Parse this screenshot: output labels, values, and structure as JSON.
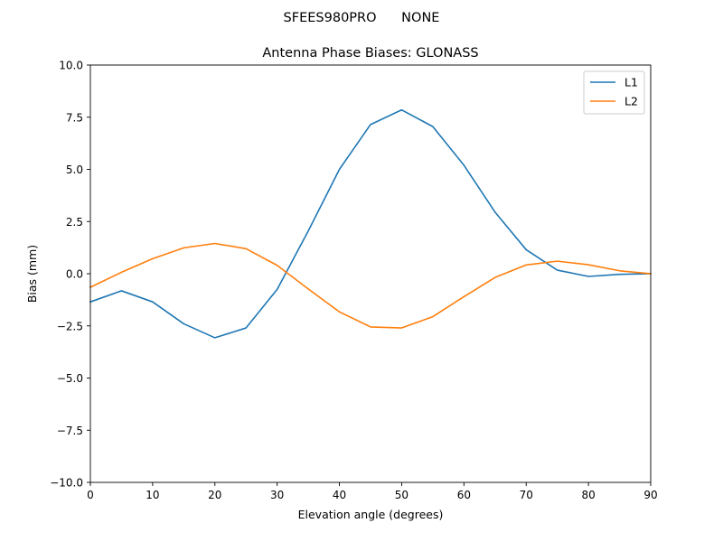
{
  "suptitle": "SFEES980PRO      NONE",
  "chart_data": {
    "type": "line",
    "title": "Antenna Phase Biases: GLONASS",
    "xlabel": "Elevation angle (degrees)",
    "ylabel": "Bias (mm)",
    "xlim": [
      0,
      90
    ],
    "ylim": [
      -10,
      10
    ],
    "xticks": [
      0,
      10,
      20,
      30,
      40,
      50,
      60,
      70,
      80,
      90
    ],
    "xtick_labels": [
      "0",
      "10",
      "20",
      "30",
      "40",
      "50",
      "60",
      "70",
      "80",
      "90"
    ],
    "yticks": [
      -10,
      -7.5,
      -5,
      -2.5,
      0,
      2.5,
      5,
      7.5,
      10
    ],
    "ytick_labels": [
      "−10.0",
      "−7.5",
      "−5.0",
      "−2.5",
      "0.0",
      "2.5",
      "5.0",
      "7.5",
      "10.0"
    ],
    "grid": false,
    "legend_position": "top-right",
    "x": [
      0,
      5,
      10,
      15,
      20,
      25,
      30,
      35,
      40,
      45,
      50,
      55,
      60,
      65,
      70,
      75,
      80,
      85,
      90
    ],
    "series": [
      {
        "name": "L1",
        "color": "#1f77b4",
        "values": [
          -1.35,
          -0.82,
          -1.35,
          -2.4,
          -3.07,
          -2.6,
          -0.75,
          2.05,
          5.0,
          7.15,
          7.85,
          7.05,
          5.2,
          2.95,
          1.15,
          0.17,
          -0.13,
          -0.03,
          0.0
        ]
      },
      {
        "name": "L2",
        "color": "#ff7f0e",
        "values": [
          -0.65,
          0.07,
          0.72,
          1.24,
          1.45,
          1.2,
          0.4,
          -0.73,
          -1.83,
          -2.55,
          -2.6,
          -2.06,
          -1.1,
          -0.18,
          0.42,
          0.6,
          0.43,
          0.14,
          0.0
        ]
      }
    ]
  }
}
